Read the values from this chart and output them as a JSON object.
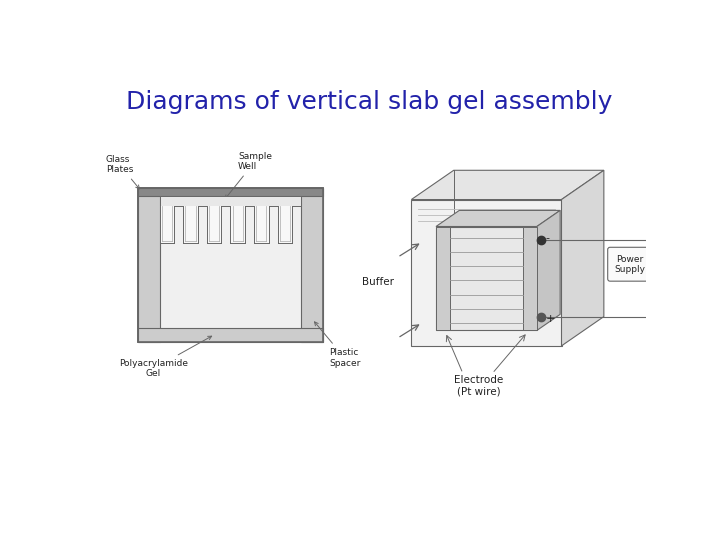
{
  "title": "Diagrams of vertical slab gel assembly",
  "title_color": "#2222aa",
  "title_fontsize": 18,
  "title_fontstyle": "normal",
  "title_fontweight": "normal",
  "bg_color": "#ffffff",
  "line_color": "#666666",
  "fill_light": "#e8e8e8",
  "fill_med": "#cccccc",
  "fill_dark": "#aaaaaa",
  "labels": {
    "glass_plates": "Glass\nPlates",
    "sample_well": "Sample\nWell",
    "polyacrylamide": "Polyacrylamide\nGel",
    "plastic_spacer": "Plastic\nSpacer",
    "buffer": "Buffer",
    "electrode": "Electrode\n(Pt wire)",
    "power_supply": "Power\nSupply",
    "minus": "-",
    "plus": "+"
  }
}
